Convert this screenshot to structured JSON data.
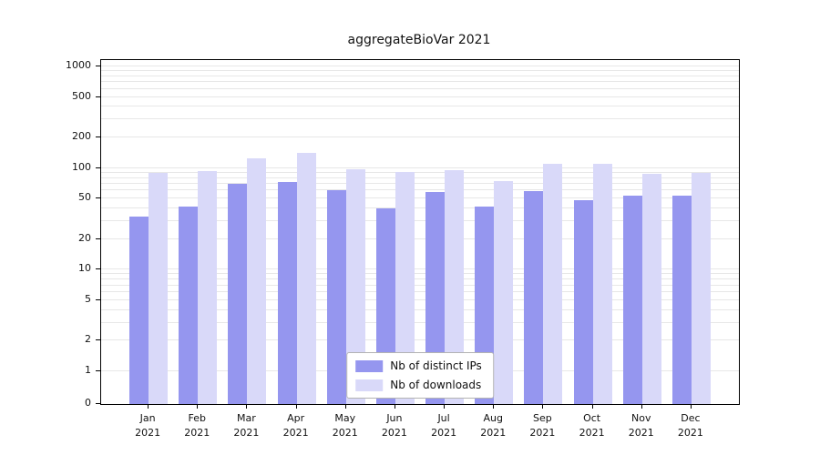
{
  "chart_data": {
    "type": "bar",
    "title": "aggregateBioVar 2021",
    "year_label": "2021",
    "categories": [
      "Jan",
      "Feb",
      "Mar",
      "Apr",
      "May",
      "Jun",
      "Jul",
      "Aug",
      "Sep",
      "Oct",
      "Nov",
      "Dec"
    ],
    "series": [
      {
        "name": "Nb of distinct IPs",
        "color": "#9596ef",
        "values": [
          33,
          42,
          70,
          73,
          60,
          40,
          58,
          42,
          59,
          48,
          53,
          54
        ]
      },
      {
        "name": "Nb of downloads",
        "color": "#d9d9f9",
        "values": [
          90,
          93,
          125,
          140,
          98,
          92,
          95,
          75,
          110,
          110,
          88,
          89
        ]
      }
    ],
    "yscale": "symlog",
    "yticks": [
      0,
      1,
      2,
      5,
      10,
      20,
      50,
      100,
      200,
      500,
      1000
    ],
    "ylim": [
      0,
      1000
    ],
    "grid": "horizontal-minor-log",
    "legend_position": "lower center"
  },
  "colors": {
    "grid": "#e7e7e7",
    "spine": "#000000",
    "legend_border": "#b3b3b3",
    "background": "#ffffff"
  }
}
